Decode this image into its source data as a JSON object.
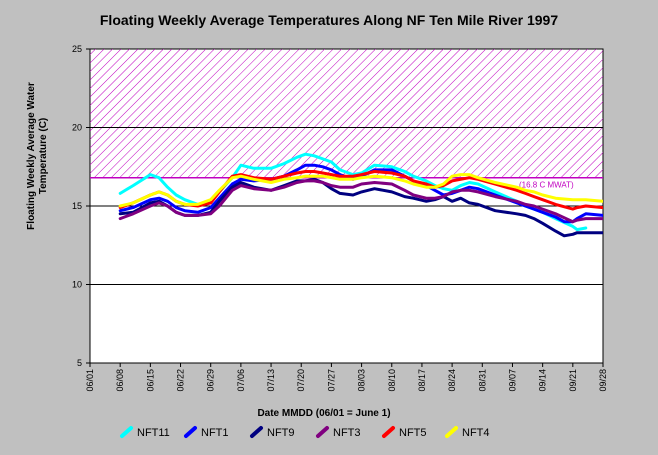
{
  "chart_data": {
    "type": "line",
    "title": "Floating Weekly Average Temperatures Along NF Ten Mile River 1997",
    "xlabel": "Date MMDD (06/01 = June 1)",
    "ylabel": "Floating Weekly Average Water Temperature (C)",
    "ylim": [
      5,
      25
    ],
    "ylabel_lines": [
      "Floating Weekly Average Water",
      "Temperature (C)"
    ],
    "yticks": [
      5,
      10,
      15,
      20,
      25
    ],
    "xlim": [
      0,
      119
    ],
    "xtick_labels": [
      "06/01",
      "06/08",
      "06/15",
      "06/22",
      "06/29",
      "07/06",
      "07/13",
      "07/20",
      "07/27",
      "08/03",
      "08/10",
      "08/17",
      "08/24",
      "08/31",
      "09/07",
      "09/14",
      "09/21",
      "09/28"
    ],
    "threshold": {
      "value": 16.8,
      "upper": 25,
      "label": "(16.8 C MWAT)",
      "color": "#c000c0"
    },
    "grid_lines": [
      10,
      15,
      20
    ],
    "legend_position": "bottom",
    "series": [
      {
        "name": "NFT11",
        "color": "#00ffff",
        "x": [
          7,
          10,
          14,
          16,
          18,
          20,
          22,
          25,
          28,
          30,
          33,
          35,
          38,
          42,
          45,
          48,
          50,
          52,
          54,
          56,
          58,
          61,
          63,
          66,
          70,
          73,
          75,
          78,
          80,
          82,
          84,
          86,
          88,
          90,
          94,
          99,
          101,
          103,
          105,
          108,
          112,
          113,
          115
        ],
        "y": [
          15.8,
          16.3,
          17.0,
          16.8,
          16.2,
          15.7,
          15.4,
          15.1,
          15.3,
          15.9,
          16.8,
          17.6,
          17.4,
          17.4,
          17.7,
          18.1,
          18.3,
          18.2,
          18.0,
          17.8,
          17.3,
          17.0,
          17.1,
          17.6,
          17.5,
          17.2,
          16.9,
          16.6,
          16.3,
          16.1,
          16.0,
          16.3,
          16.5,
          16.4,
          15.9,
          15.3,
          15.0,
          14.8,
          14.6,
          14.2,
          13.7,
          13.5,
          13.6
        ]
      },
      {
        "name": "NFT1",
        "color": "#0000ff",
        "x": [
          7,
          10,
          14,
          16,
          18,
          20,
          22,
          25,
          28,
          30,
          33,
          35,
          38,
          42,
          45,
          48,
          50,
          52,
          54,
          56,
          58,
          61,
          63,
          66,
          70,
          73,
          75,
          78,
          80,
          82,
          84,
          86,
          88,
          90,
          94,
          99,
          101,
          103,
          105,
          108,
          110,
          112,
          113,
          115,
          119
        ],
        "y": [
          14.7,
          14.9,
          15.4,
          15.5,
          15.3,
          14.9,
          14.7,
          14.6,
          14.9,
          15.5,
          16.4,
          16.7,
          16.6,
          16.7,
          16.9,
          17.3,
          17.6,
          17.6,
          17.5,
          17.3,
          17.0,
          16.7,
          16.9,
          17.3,
          17.3,
          16.9,
          16.6,
          16.3,
          16.0,
          15.7,
          15.8,
          16.0,
          16.2,
          16.1,
          15.7,
          15.2,
          15.0,
          14.8,
          14.6,
          14.3,
          14.0,
          14.0,
          14.2,
          14.5,
          14.4
        ]
      },
      {
        "name": "NFT9",
        "color": "#000080",
        "x": [
          7,
          10,
          14,
          16,
          18,
          20,
          22,
          25,
          28,
          30,
          33,
          35,
          38,
          42,
          45,
          48,
          50,
          52,
          54,
          56,
          58,
          61,
          63,
          66,
          70,
          73,
          75,
          78,
          80,
          82,
          84,
          86,
          88,
          90,
          94,
          99,
          101,
          103,
          105,
          108,
          110,
          112,
          113,
          115,
          119
        ],
        "y": [
          14.5,
          14.6,
          15.2,
          15.3,
          15.0,
          14.6,
          14.4,
          14.4,
          14.6,
          15.3,
          16.2,
          16.5,
          16.2,
          16.0,
          16.3,
          16.6,
          16.6,
          16.7,
          16.5,
          16.1,
          15.8,
          15.7,
          15.9,
          16.1,
          15.9,
          15.6,
          15.5,
          15.3,
          15.4,
          15.6,
          15.3,
          15.5,
          15.2,
          15.1,
          14.7,
          14.5,
          14.4,
          14.2,
          13.9,
          13.4,
          13.1,
          13.2,
          13.3,
          13.3,
          13.3
        ]
      },
      {
        "name": "NFT3",
        "color": "#800080",
        "x": [
          7,
          10,
          14,
          16,
          18,
          20,
          22,
          25,
          28,
          30,
          33,
          35,
          38,
          42,
          45,
          48,
          50,
          52,
          54,
          56,
          58,
          61,
          63,
          66,
          70,
          73,
          75,
          78,
          80,
          82,
          84,
          86,
          88,
          90,
          94,
          99,
          101,
          103,
          105,
          108,
          112,
          113,
          115,
          119
        ],
        "y": [
          14.2,
          14.5,
          15.0,
          15.2,
          15.0,
          14.6,
          14.4,
          14.4,
          14.5,
          15.0,
          16.0,
          16.3,
          16.1,
          16.0,
          16.2,
          16.5,
          16.6,
          16.6,
          16.5,
          16.3,
          16.2,
          16.2,
          16.4,
          16.5,
          16.4,
          16.0,
          15.7,
          15.5,
          15.5,
          15.6,
          15.9,
          16.0,
          16.0,
          15.9,
          15.6,
          15.3,
          15.1,
          15.0,
          14.8,
          14.5,
          14.0,
          14.1,
          14.2,
          14.2
        ]
      },
      {
        "name": "NFT5",
        "color": "#ff0000",
        "x": [
          7,
          10,
          14,
          16,
          18,
          20,
          22,
          25,
          28,
          30,
          33,
          35,
          38,
          42,
          45,
          48,
          50,
          52,
          54,
          56,
          58,
          61,
          63,
          66,
          70,
          73,
          75,
          78,
          80,
          82,
          84,
          86,
          88,
          90,
          94,
          99,
          101,
          103,
          105,
          108,
          112,
          113,
          115,
          119
        ],
        "y": [
          14.9,
          15.2,
          15.7,
          15.9,
          15.7,
          15.3,
          15.1,
          15.0,
          15.2,
          15.9,
          16.9,
          17.0,
          16.8,
          16.7,
          16.9,
          17.1,
          17.2,
          17.2,
          17.1,
          17.0,
          16.9,
          16.9,
          17.0,
          17.2,
          17.1,
          16.9,
          16.6,
          16.4,
          16.2,
          16.3,
          16.6,
          16.7,
          16.8,
          16.7,
          16.4,
          16.0,
          15.8,
          15.6,
          15.4,
          15.1,
          14.8,
          14.9,
          15.0,
          14.9
        ]
      },
      {
        "name": "NFT4",
        "color": "#ffff00",
        "x": [
          7,
          10,
          14,
          16,
          18,
          20,
          22,
          25,
          28,
          30,
          33,
          35,
          38,
          42,
          45,
          48,
          50,
          52,
          54,
          56,
          58,
          61,
          63,
          66,
          70,
          73,
          75,
          78,
          80,
          82,
          84,
          86,
          88,
          90,
          94,
          99,
          101,
          103,
          105,
          108,
          112,
          113,
          115,
          119
        ],
        "y": [
          15.0,
          15.2,
          15.7,
          15.9,
          15.7,
          15.3,
          15.1,
          15.1,
          15.4,
          16.0,
          16.8,
          16.9,
          16.7,
          16.5,
          16.7,
          16.8,
          16.9,
          16.9,
          16.9,
          16.8,
          16.7,
          16.7,
          16.8,
          16.9,
          16.8,
          16.6,
          16.4,
          16.2,
          16.2,
          16.4,
          16.9,
          17.0,
          17.0,
          16.8,
          16.5,
          16.2,
          16.0,
          15.9,
          15.7,
          15.5,
          15.4,
          15.4,
          15.4,
          15.3
        ]
      }
    ]
  }
}
